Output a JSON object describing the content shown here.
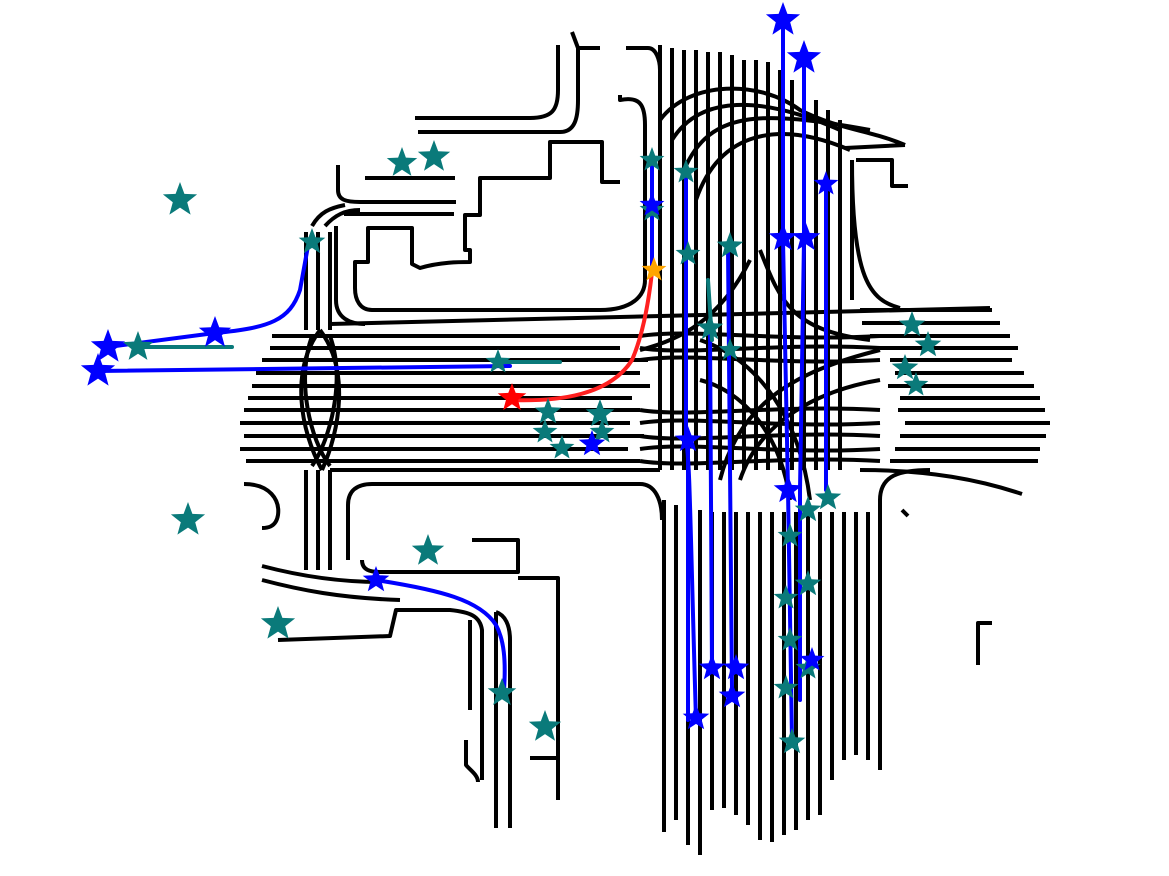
{
  "colors": {
    "background": "#ffffff",
    "lane": "#000000",
    "agent_route": "#0000ff",
    "ego_route": "#ff2020",
    "agent_marker": "#0000ff",
    "static_agent_marker": "#0a7a7a",
    "ego_marker": "#ff0000",
    "goal_marker": "#ffa500"
  },
  "icons": {
    "agent": "star-icon",
    "static_agent": "star-icon",
    "ego": "star-icon",
    "goal": "star-icon"
  }
}
